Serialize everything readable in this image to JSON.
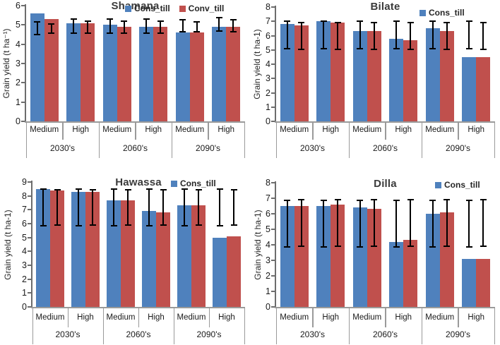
{
  "figure": {
    "background": "#ffffff",
    "bar_color_cons": "#4F81BD",
    "bar_color_conv": "#C0504D",
    "error_bar_color": "#000000"
  },
  "chart_data": [
    {
      "type": "bar",
      "title": "Shamana",
      "ylabel": "Grain yield (t ha⁻¹)",
      "ylim": [
        0,
        6
      ],
      "ytick_step": 1,
      "grid": false,
      "categories": [
        "Medium",
        "High",
        "Medium",
        "High",
        "Medium",
        "High"
      ],
      "period_labels": [
        "2030's",
        "2060's",
        "2090's"
      ],
      "legend": [
        "Cons_till",
        "Conv_till"
      ],
      "legend_position": "top-right-inside",
      "legend_pos": {
        "x": 177,
        "y": 5
      },
      "series": [
        {
          "name": "Cons_till",
          "color": "#4F81BD",
          "values": [
            5.6,
            5.1,
            5.0,
            4.9,
            4.6,
            4.9
          ],
          "err_lo": [
            4.6,
            4.7,
            4.7,
            4.7,
            4.75,
            4.8
          ],
          "err_hi": [
            5.2,
            5.35,
            5.35,
            5.35,
            5.3,
            5.4
          ]
        },
        {
          "name": "Conv_till",
          "color": "#C0504D",
          "values": [
            5.3,
            5.1,
            4.9,
            4.9,
            4.6,
            4.9
          ],
          "err_lo": [
            4.7,
            4.7,
            4.7,
            4.7,
            4.75,
            4.75
          ],
          "err_hi": [
            5.1,
            5.25,
            5.25,
            5.25,
            5.2,
            5.3
          ]
        }
      ]
    },
    {
      "type": "bar",
      "title": "Bilate",
      "ylabel": "Grain yield (t ha-1)",
      "ylim": [
        0,
        8
      ],
      "ytick_step": 1,
      "grid": false,
      "categories": [
        "Medium",
        "High",
        "Medium",
        "High",
        "Medium",
        "High"
      ],
      "period_labels": [
        "2030's",
        "2060's",
        "2090's"
      ],
      "legend": [
        "Cons_till"
      ],
      "legend_position": "top-right-inside",
      "legend_pos": {
        "x": 240,
        "y": 11
      },
      "series": [
        {
          "name": "Cons_till",
          "color": "#4F81BD",
          "values": [
            6.8,
            7.0,
            6.3,
            5.8,
            6.5,
            4.5
          ],
          "err_lo": [
            5.25,
            5.25,
            5.25,
            5.25,
            5.25,
            5.25
          ],
          "err_hi": [
            7.05,
            7.05,
            7.05,
            7.05,
            7.05,
            7.05
          ]
        },
        {
          "name": "Conv_till",
          "color": "#C0504D",
          "values": [
            6.7,
            6.9,
            6.3,
            5.7,
            6.3,
            4.5
          ],
          "err_lo": [
            5.2,
            5.2,
            5.2,
            5.2,
            5.2,
            5.2
          ],
          "err_hi": [
            6.95,
            6.95,
            6.95,
            6.95,
            6.95,
            6.95
          ]
        }
      ]
    },
    {
      "type": "bar",
      "title": "Hawassa",
      "ylabel": "Grain yield (t ha-1)",
      "ylim": [
        0,
        9
      ],
      "ytick_step": 1,
      "grid": false,
      "categories": [
        "Medium",
        "High",
        "Medium",
        "High",
        "Medium",
        "High"
      ],
      "period_labels": [
        "2030's",
        "2060's",
        "2090's"
      ],
      "legend": [
        "Cons_till"
      ],
      "legend_position": "top-right-inside",
      "legend_pos": {
        "x": 242,
        "y": 13
      },
      "series": [
        {
          "name": "Cons_till",
          "color": "#4F81BD",
          "values": [
            8.5,
            8.3,
            7.7,
            6.9,
            7.3,
            5.0
          ],
          "err_lo": [
            6.0,
            6.0,
            6.0,
            6.0,
            6.0,
            6.0
          ],
          "err_hi": [
            8.55,
            8.55,
            8.55,
            8.55,
            8.55,
            8.55
          ]
        },
        {
          "name": "Conv_till",
          "color": "#C0504D",
          "values": [
            8.4,
            8.3,
            7.7,
            6.8,
            7.3,
            5.1
          ],
          "err_lo": [
            6.05,
            6.05,
            6.05,
            6.05,
            6.05,
            6.05
          ],
          "err_hi": [
            8.5,
            8.5,
            8.5,
            8.5,
            8.5,
            8.5
          ]
        }
      ]
    },
    {
      "type": "bar",
      "title": "Dilla",
      "ylabel": "Grain yield (t ha-1)",
      "ylim": [
        0,
        8
      ],
      "ytick_step": 1,
      "grid": false,
      "categories": [
        "Medium",
        "High",
        "Medium",
        "High",
        "Medium",
        "High"
      ],
      "period_labels": [
        "2030's",
        "2060's",
        "2090's"
      ],
      "legend": [
        "Cons_till"
      ],
      "legend_position": "top-right-inside",
      "legend_pos": {
        "x": 262,
        "y": 15
      },
      "series": [
        {
          "name": "Cons_till",
          "color": "#4F81BD",
          "values": [
            6.5,
            6.5,
            6.4,
            4.2,
            6.0,
            3.1
          ],
          "err_lo": [
            4.0,
            4.0,
            4.0,
            4.0,
            4.0,
            4.0
          ],
          "err_hi": [
            6.9,
            6.9,
            6.9,
            6.9,
            6.9,
            6.9
          ]
        },
        {
          "name": "Conv_till",
          "color": "#C0504D",
          "values": [
            6.5,
            6.6,
            6.3,
            4.3,
            6.1,
            3.1
          ],
          "err_lo": [
            4.05,
            4.05,
            4.05,
            4.05,
            4.05,
            4.05
          ],
          "err_hi": [
            6.95,
            6.95,
            6.95,
            6.95,
            6.95,
            6.95
          ]
        }
      ]
    }
  ]
}
